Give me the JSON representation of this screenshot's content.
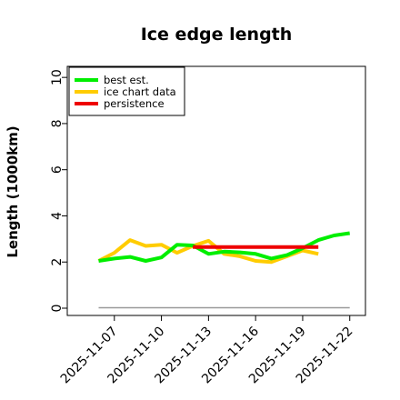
{
  "chart_data": {
    "type": "line",
    "title": "Ice edge length",
    "xlabel": "",
    "ylabel": "Length (1000km)",
    "xlim": [
      "2025-11-04",
      "2025-11-23"
    ],
    "ylim": [
      0,
      10.4
    ],
    "x_ticks": [
      "2025-11-07",
      "2025-11-10",
      "2025-11-13",
      "2025-11-16",
      "2025-11-19",
      "2025-11-22"
    ],
    "y_ticks": [
      0,
      2,
      4,
      6,
      8,
      10
    ],
    "grid": false,
    "legend_position": "top-left",
    "series": [
      {
        "name": "best est.",
        "color": "#00ee00",
        "x": [
          "2025-11-06",
          "2025-11-07",
          "2025-11-08",
          "2025-11-09",
          "2025-11-10",
          "2025-11-11",
          "2025-11-12",
          "2025-11-13",
          "2025-11-14",
          "2025-11-15",
          "2025-11-16",
          "2025-11-17",
          "2025-11-18",
          "2025-11-19",
          "2025-11-20",
          "2025-11-21",
          "2025-11-22"
        ],
        "values": [
          2.05,
          2.15,
          2.22,
          2.05,
          2.2,
          2.75,
          2.72,
          2.35,
          2.45,
          2.42,
          2.35,
          2.15,
          2.3,
          2.6,
          2.95,
          3.15,
          3.25
        ]
      },
      {
        "name": "ice chart data",
        "color": "#ffcc00",
        "x": [
          "2025-11-06",
          "2025-11-07",
          "2025-11-08",
          "2025-11-09",
          "2025-11-10",
          "2025-11-11",
          "2025-11-12",
          "2025-11-13",
          "2025-11-14",
          "2025-11-15",
          "2025-11-16",
          "2025-11-17",
          "2025-11-18",
          "2025-11-19",
          "2025-11-20"
        ],
        "values": [
          2.05,
          2.4,
          2.95,
          2.7,
          2.75,
          2.4,
          2.7,
          2.92,
          2.35,
          2.25,
          2.05,
          2.0,
          2.25,
          2.5,
          2.35
        ]
      },
      {
        "name": "persistence",
        "color": "#ee0000",
        "x": [
          "2025-11-12",
          "2025-11-20"
        ],
        "values": [
          2.65,
          2.65
        ]
      },
      {
        "name": "",
        "color": "#999999",
        "x": [
          "2025-11-06",
          "2025-11-22"
        ],
        "values": [
          0.02,
          0.02
        ]
      }
    ]
  }
}
